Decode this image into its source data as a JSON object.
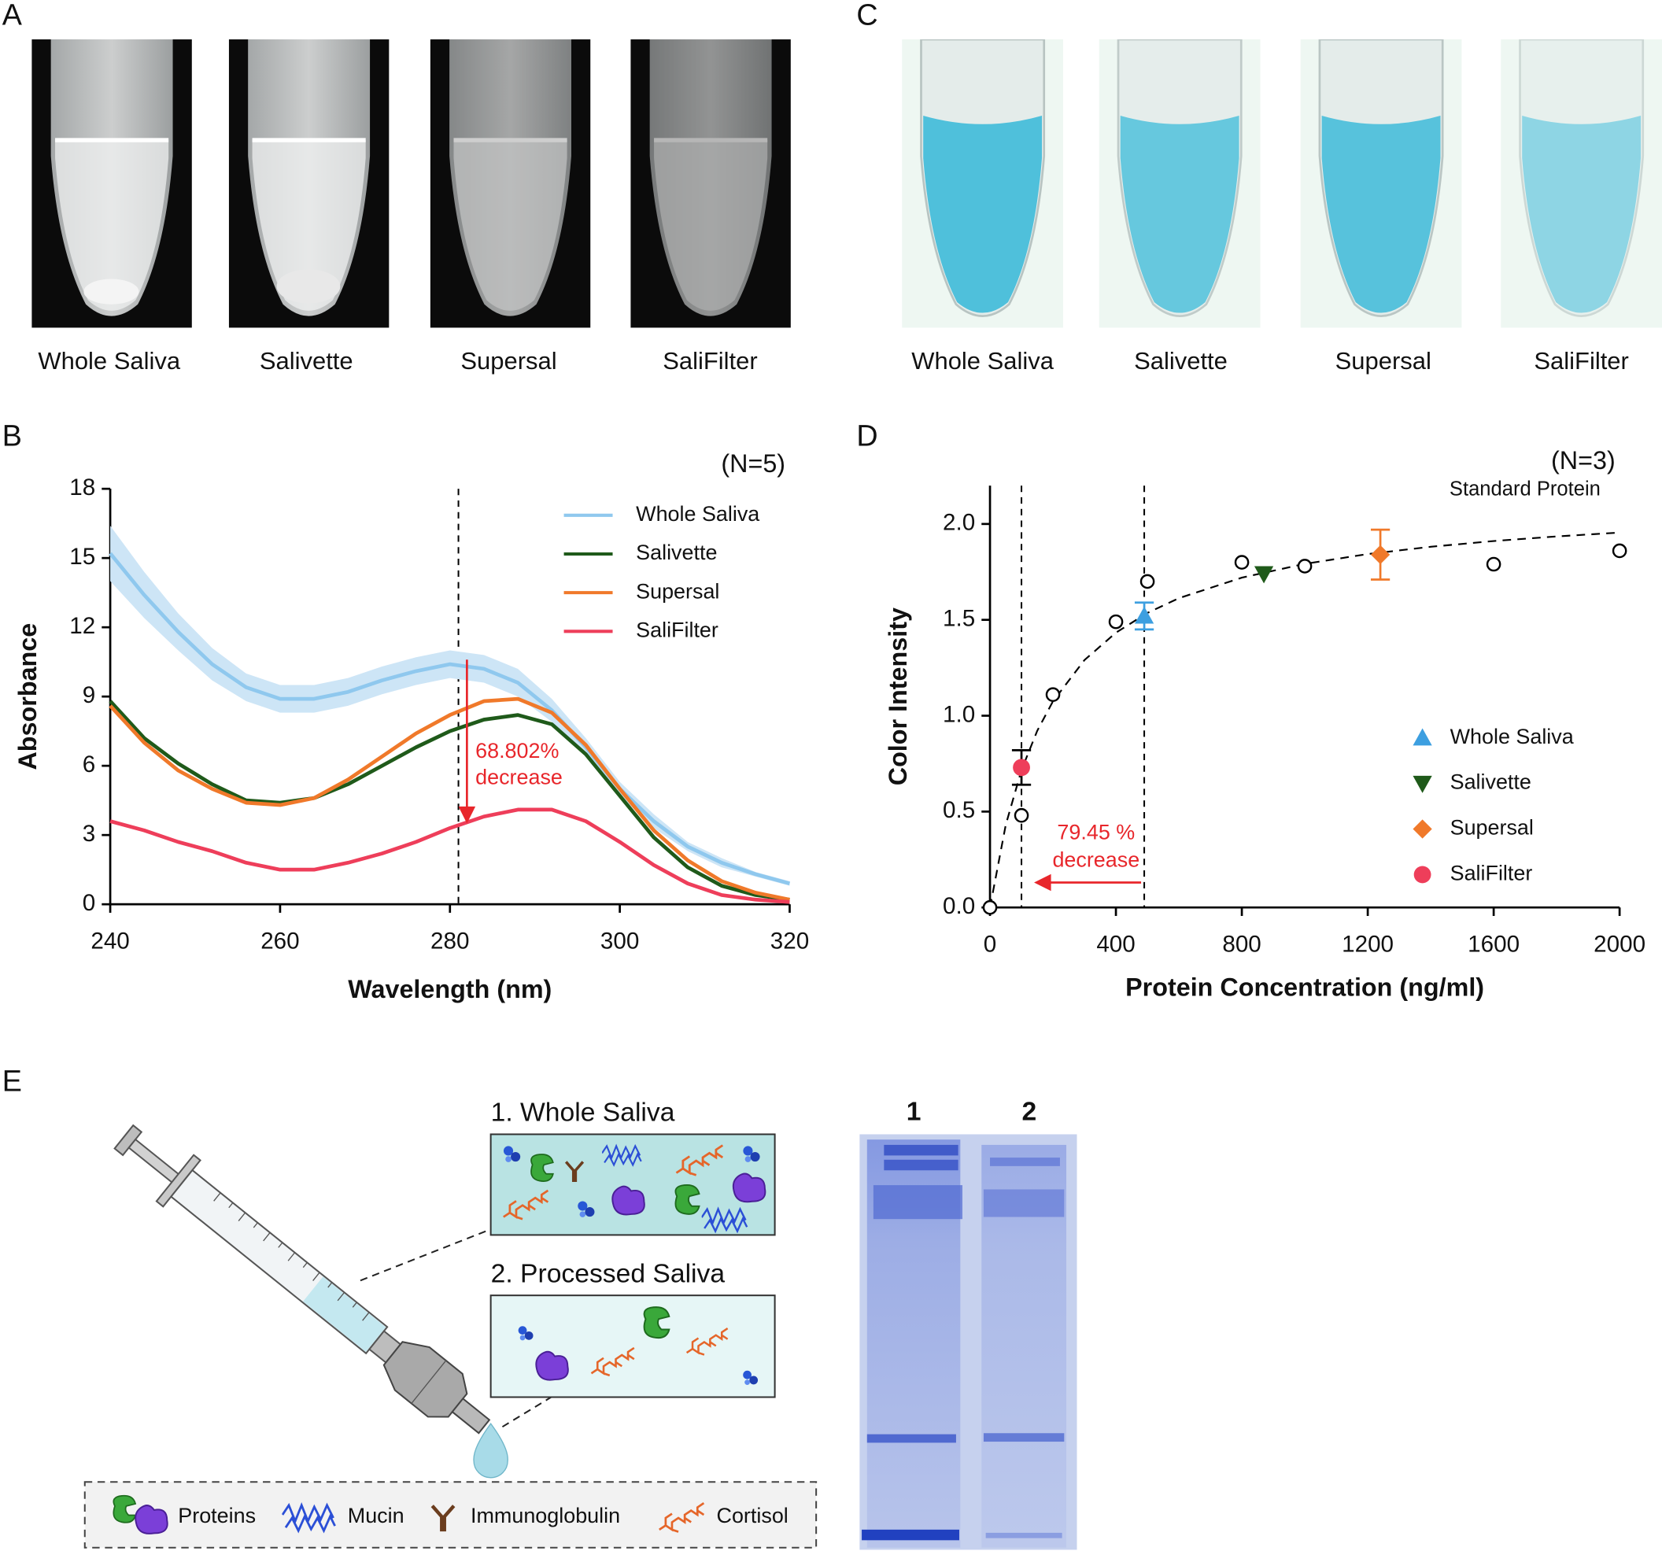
{
  "panel_labels": [
    "A",
    "B",
    "C",
    "D",
    "E"
  ],
  "photos_a": {
    "captions": [
      "Whole Saliva",
      "Salivette",
      "Supersal",
      "SaliFilter"
    ]
  },
  "photos_c": {
    "captions": [
      "Whole Saliva",
      "Salivette",
      "Supersal",
      "SaliFilter"
    ]
  },
  "chart_data": [
    {
      "type": "line",
      "xlabel": "Wavelength (nm)",
      "ylabel": "Absorbance",
      "annotation": "(N=5)",
      "xlim": [
        240,
        320
      ],
      "xticks": [
        240,
        260,
        280,
        300,
        320
      ],
      "ylim": [
        0,
        18
      ],
      "yticks": [
        0,
        3,
        6,
        9,
        12,
        15,
        18
      ],
      "legend": "upper right",
      "x": [
        240,
        244,
        248,
        252,
        256,
        260,
        264,
        268,
        272,
        276,
        280,
        284,
        288,
        292,
        296,
        300,
        304,
        308,
        312,
        316,
        320
      ],
      "series": [
        {
          "name": "Whole Saliva",
          "color": "#8fc8ee",
          "band_color": "#cde5f6",
          "values": [
            15.2,
            13.4,
            11.8,
            10.4,
            9.4,
            8.9,
            8.9,
            9.2,
            9.7,
            10.1,
            10.4,
            10.2,
            9.6,
            8.4,
            6.8,
            5.0,
            3.6,
            2.5,
            1.8,
            1.3,
            0.9
          ],
          "errors": [
            1.2,
            1.0,
            0.8,
            0.7,
            0.6,
            0.6,
            0.6,
            0.6,
            0.6,
            0.6,
            0.6,
            0.6,
            0.6,
            0.5,
            0.4,
            0.3,
            0.3,
            0.2,
            0.2,
            0.1,
            0.1
          ]
        },
        {
          "name": "Salivette",
          "color": "#1f5a1a",
          "values": [
            8.8,
            7.2,
            6.1,
            5.2,
            4.5,
            4.4,
            4.6,
            5.2,
            6.0,
            6.8,
            7.5,
            8.0,
            8.2,
            7.8,
            6.5,
            4.7,
            2.9,
            1.6,
            0.8,
            0.4,
            0.2
          ]
        },
        {
          "name": "Supersal",
          "color": "#f0792a",
          "values": [
            8.6,
            7.0,
            5.8,
            5.0,
            4.4,
            4.3,
            4.6,
            5.4,
            6.4,
            7.4,
            8.2,
            8.8,
            8.9,
            8.3,
            6.9,
            5.0,
            3.2,
            1.9,
            1.0,
            0.5,
            0.2
          ]
        },
        {
          "name": "SaliFilter",
          "color": "#ee3e5a",
          "values": [
            3.6,
            3.2,
            2.7,
            2.3,
            1.8,
            1.5,
            1.5,
            1.8,
            2.2,
            2.7,
            3.3,
            3.8,
            4.1,
            4.1,
            3.6,
            2.7,
            1.7,
            0.9,
            0.4,
            0.2,
            0.1
          ]
        }
      ],
      "reference_x": [
        281
      ],
      "arrow": {
        "x": 282,
        "y": [
          10.6,
          3.5
        ],
        "color": "#e8262b",
        "label": [
          "68.802%",
          "decrease"
        ]
      }
    },
    {
      "type": "scatter",
      "xlabel": "Protein Concentration (ng/ml)",
      "ylabel": "Color Intensity",
      "annotation": "(N=3)",
      "xlim": [
        0,
        2000
      ],
      "xticks": [
        0,
        400,
        800,
        1200,
        1600,
        2000
      ],
      "ylim": [
        0,
        2.2
      ],
      "yticks": [
        {
          "value": 0,
          "label": "0.0"
        },
        0.5,
        {
          "value": 1,
          "label": "1.0"
        },
        1.5,
        {
          "value": 2,
          "label": "2.0"
        }
      ],
      "legend": "lower right",
      "standard": {
        "x": [
          0,
          100,
          200,
          400,
          500,
          800,
          1000,
          1600,
          2000
        ],
        "values": [
          0.0,
          0.48,
          1.11,
          1.49,
          1.7,
          1.8,
          1.78,
          1.79,
          1.86
        ]
      },
      "fit": {
        "name": "Standard Protein",
        "x": [
          0,
          50,
          100,
          150,
          200,
          300,
          400,
          500,
          600,
          800,
          1000,
          1200,
          1400,
          1600,
          1800,
          2000
        ],
        "values": [
          0,
          0.43,
          0.717,
          0.921,
          1.075,
          1.29,
          1.433,
          1.536,
          1.613,
          1.72,
          1.792,
          1.843,
          1.881,
          1.911,
          1.935,
          1.955
        ]
      },
      "series": [
        {
          "name": "Whole Saliva",
          "color": "#3d9fe0",
          "marker": "triangle-up",
          "x": [
            490
          ],
          "values": [
            1.52
          ],
          "errors": [
            0.07
          ]
        },
        {
          "name": "Salivette",
          "color": "#1f5a1a",
          "marker": "triangle-down",
          "x": [
            870
          ],
          "values": [
            1.74
          ]
        },
        {
          "name": "Supersal",
          "color": "#f0792a",
          "marker": "diamond",
          "x": [
            1240
          ],
          "values": [
            1.84
          ],
          "errors": [
            0.13
          ]
        },
        {
          "name": "SaliFilter",
          "color": "#ee3e5a",
          "marker": "circle",
          "x": [
            100
          ],
          "values": [
            0.73
          ],
          "errors": [
            0.09
          ]
        }
      ],
      "reference_x": [
        100,
        490
      ],
      "arrow": {
        "x": [
          480,
          140
        ],
        "y": 0.13,
        "color": "#e8262b",
        "label": [
          "79.45 %",
          "decrease"
        ]
      }
    }
  ],
  "panel_e": {
    "boxes": [
      "1. Whole Saliva",
      "2. Processed Saliva"
    ],
    "legend": [
      "Proteins",
      "Mucin",
      "Immunoglobulin",
      "Cortisol"
    ],
    "gel_lanes": [
      "1",
      "2"
    ]
  }
}
